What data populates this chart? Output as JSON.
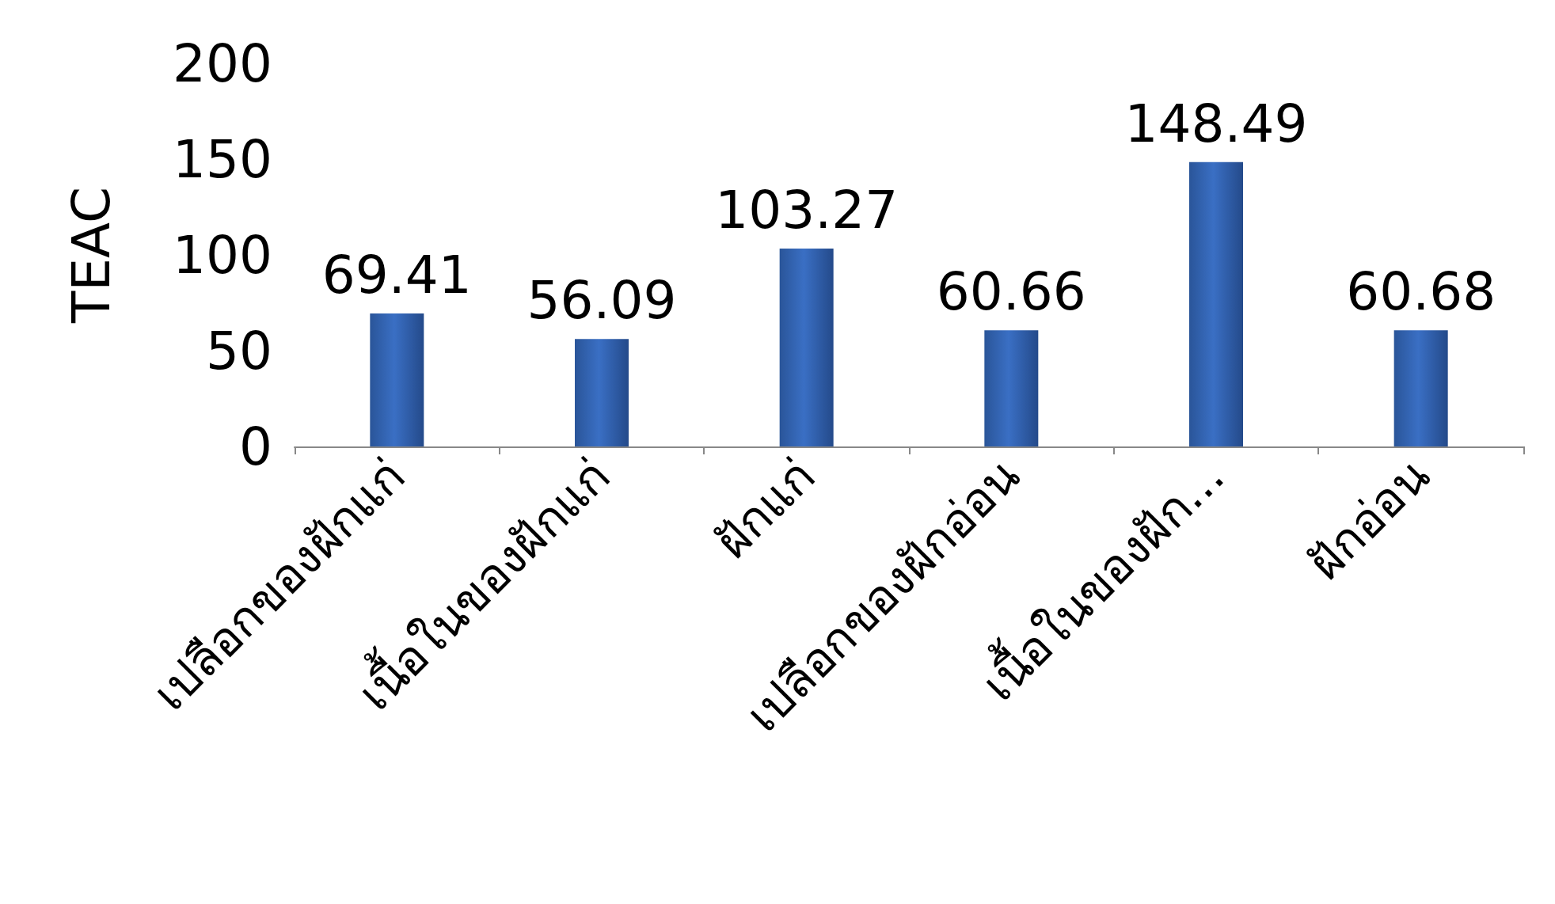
{
  "chart_data": {
    "type": "bar",
    "ylabel": "TEAC",
    "categories": [
      "เปลือกของฝักแก่",
      "เนื้อในของฝักแก่",
      "ฝักแก่",
      "เปลือกของฝักอ่อน",
      "เนื้อในของฝัก...",
      "ฝักอ่อน"
    ],
    "values": [
      69.41,
      56.09,
      103.27,
      60.66,
      148.49,
      60.68
    ],
    "color": "#3a6fc4",
    "ylim": [
      0,
      200
    ],
    "yticks": [
      0,
      50,
      100,
      150,
      200
    ],
    "data_labels": true,
    "grid": false
  }
}
